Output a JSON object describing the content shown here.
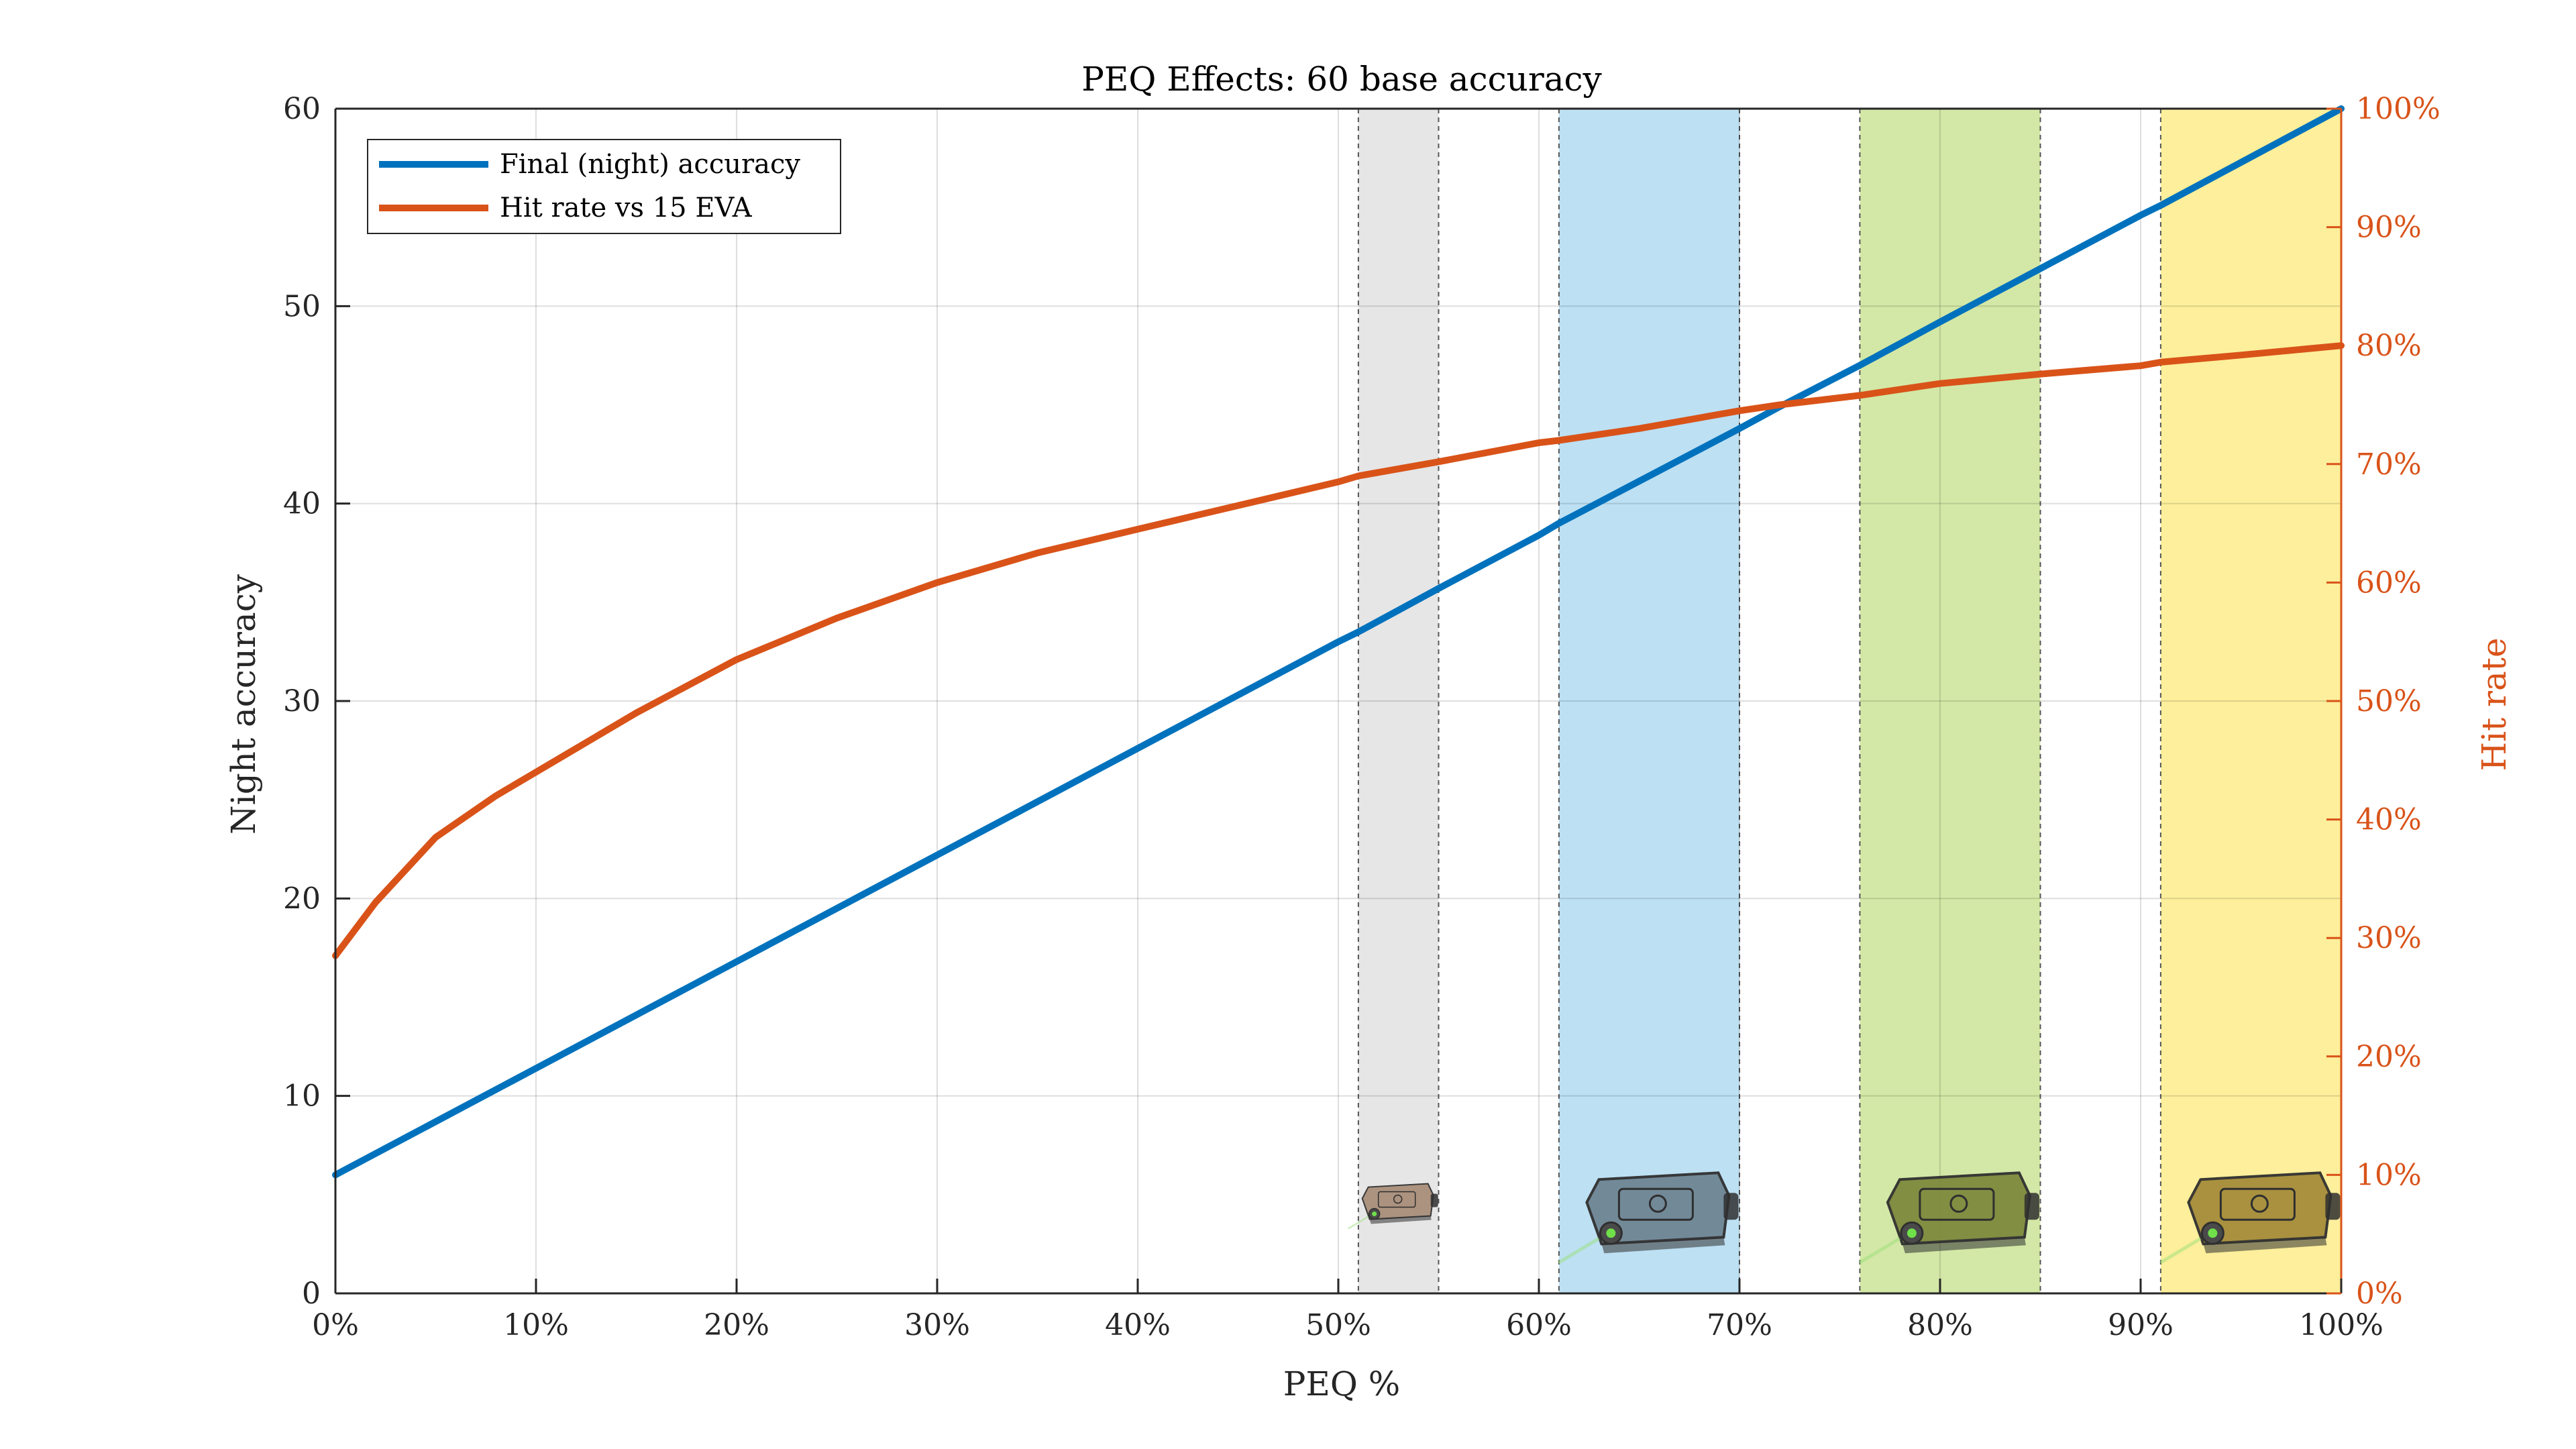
{
  "chart_data": {
    "type": "line",
    "title": "PEQ Effects: 60 base accuracy",
    "xlabel": "PEQ %",
    "ylabel": "Night accuracy",
    "ylabel_right": "Hit rate",
    "xlim": [
      0,
      100
    ],
    "ylim": [
      0,
      60
    ],
    "ylim_right": [
      0,
      100
    ],
    "x_ticks": [
      0,
      10,
      20,
      30,
      40,
      50,
      60,
      70,
      80,
      90,
      100
    ],
    "x_tick_labels": [
      "0%",
      "10%",
      "20%",
      "30%",
      "40%",
      "50%",
      "60%",
      "70%",
      "80%",
      "90%",
      "100%"
    ],
    "y_ticks": [
      0,
      10,
      20,
      30,
      40,
      50,
      60
    ],
    "y_tick_labels": [
      "0",
      "10",
      "20",
      "30",
      "40",
      "50",
      "60"
    ],
    "y_right_ticks": [
      0,
      10,
      20,
      30,
      40,
      50,
      60,
      70,
      80,
      90,
      100
    ],
    "y_right_tick_labels": [
      "0%",
      "10%",
      "20%",
      "30%",
      "40%",
      "50%",
      "60%",
      "70%",
      "80%",
      "90%",
      "100%"
    ],
    "grid": true,
    "legend_position": "top-left",
    "series": [
      {
        "name": "Final (night) accuracy",
        "axis": "left",
        "color": "#0072bd",
        "x": [
          0,
          10,
          20,
          30,
          40,
          50,
          51,
          55,
          60,
          61,
          70,
          72,
          76,
          80,
          85,
          90,
          91,
          100
        ],
        "y": [
          6,
          11.4,
          16.8,
          22.2,
          27.6,
          33,
          33.5,
          35.7,
          38.4,
          39,
          43.8,
          44.9,
          47,
          49.2,
          51.9,
          54.6,
          55.1,
          60
        ]
      },
      {
        "name": "Hit rate vs 15 EVA",
        "axis": "right",
        "color": "#d95319",
        "x": [
          0,
          2,
          5,
          8,
          10,
          15,
          20,
          25,
          30,
          35,
          40,
          45,
          50,
          51,
          55,
          60,
          61,
          65,
          70,
          72,
          76,
          80,
          85,
          90,
          91,
          95,
          100
        ],
        "y": [
          28.5,
          33,
          38.5,
          42,
          44,
          49,
          53.5,
          57,
          60,
          62.5,
          64.5,
          66.5,
          68.5,
          69,
          70.2,
          71.8,
          72,
          73,
          74.5,
          75,
          75.8,
          76.8,
          77.6,
          78.3,
          78.6,
          79.2,
          80
        ]
      }
    ],
    "shaded_regions": [
      {
        "x_start": 51,
        "x_end": 55,
        "color": "#e6e6e6"
      },
      {
        "x_start": 61,
        "x_end": 70,
        "color": "#bde0f3"
      },
      {
        "x_start": 76,
        "x_end": 85,
        "color": "#d3e8a6"
      },
      {
        "x_start": 91,
        "x_end": 100,
        "color": "#fdef9b"
      }
    ],
    "icons": [
      {
        "name": "peq-device-icon",
        "x_center": 53,
        "y": 4.5,
        "color": "#a98f7a",
        "scale": 0.5
      },
      {
        "name": "peq-device-icon",
        "x_center": 66,
        "y": 4,
        "color": "#6f8594",
        "scale": 1
      },
      {
        "name": "peq-device-icon",
        "x_center": 81,
        "y": 4,
        "color": "#7e8a3d",
        "scale": 1
      },
      {
        "name": "peq-device-icon",
        "x_center": 96,
        "y": 4,
        "color": "#a58d3b",
        "scale": 1
      }
    ]
  }
}
